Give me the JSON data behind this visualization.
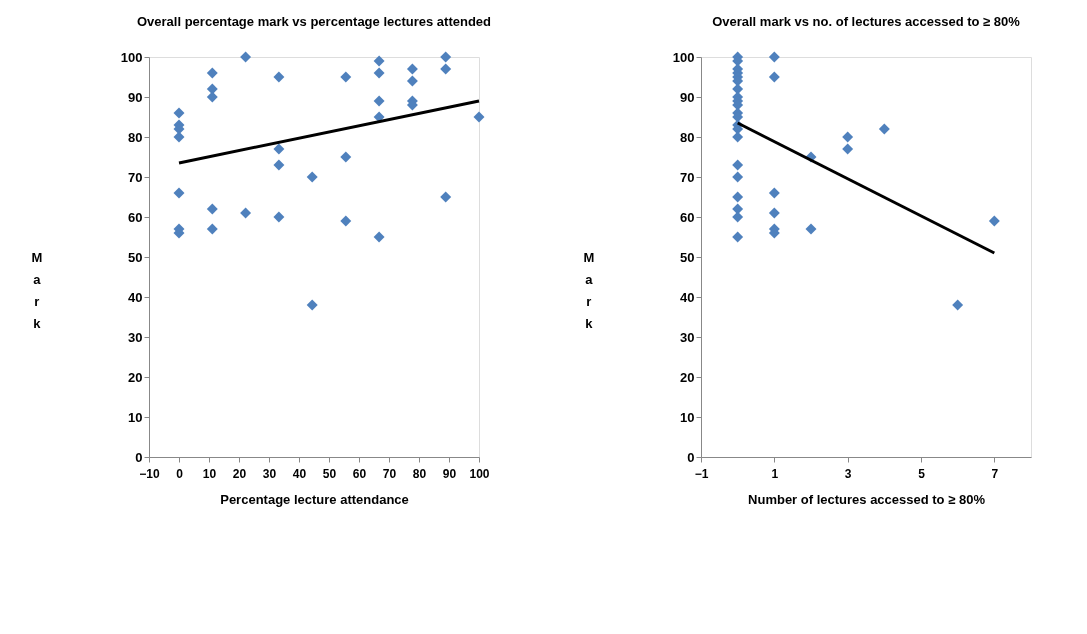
{
  "chart_data": [
    {
      "type": "scatter",
      "title": "Overall percentage mark vs percentage lectures attended",
      "xlabel": "Percentage lecture attendance",
      "ylabel": "Mark",
      "xlim": [
        -10,
        100
      ],
      "xticks": [
        -10,
        0,
        10,
        20,
        30,
        40,
        50,
        60,
        70,
        80,
        90,
        100
      ],
      "ylim": [
        0,
        100
      ],
      "yticks": [
        0,
        10,
        20,
        30,
        40,
        50,
        60,
        70,
        80,
        90,
        100
      ],
      "grid": false,
      "legend": false,
      "series": [
        {
          "type": "scatter",
          "marker": "diamond",
          "color": "#4f81bd",
          "x": [
            0,
            0,
            0,
            0,
            0,
            0,
            0,
            11.1,
            11.1,
            11.1,
            11.1,
            11.1,
            22.2,
            22.2,
            33.3,
            33.3,
            33.3,
            33.3,
            44.4,
            44.4,
            55.6,
            55.6,
            55.6,
            66.7,
            66.7,
            66.7,
            66.7,
            66.7,
            77.8,
            77.8,
            77.8,
            77.8,
            88.9,
            88.9,
            88.9,
            100
          ],
          "values": [
            86,
            83,
            82,
            80,
            66,
            57,
            56,
            96,
            92,
            90,
            62,
            57,
            100,
            61,
            95,
            77,
            73,
            60,
            70,
            38,
            95,
            75,
            59,
            99,
            96,
            89,
            85,
            55,
            97,
            94,
            89,
            88,
            100,
            97,
            65,
            85
          ]
        },
        {
          "type": "line",
          "marker": "none",
          "color": "#000000",
          "x": [
            0,
            100
          ],
          "values": [
            73.5,
            89
          ]
        }
      ]
    },
    {
      "type": "scatter",
      "title": "Overall mark vs no. of lectures accessed to ≥ 80%",
      "xlabel": "Number of lectures accessed to ≥ 80%",
      "ylabel": "Mark",
      "xlim": [
        -1,
        8
      ],
      "xticks": [
        -1,
        1,
        3,
        5,
        7
      ],
      "ylim": [
        0,
        100
      ],
      "yticks": [
        0,
        10,
        20,
        30,
        40,
        50,
        60,
        70,
        80,
        90,
        100
      ],
      "grid": false,
      "legend": false,
      "series": [
        {
          "type": "scatter",
          "marker": "diamond",
          "color": "#4f81bd",
          "x": [
            0,
            0,
            0,
            0,
            0,
            0,
            0,
            0,
            0,
            0,
            0,
            0,
            0,
            0,
            0,
            0,
            0,
            0,
            0,
            0,
            0,
            1,
            1,
            1,
            1,
            1,
            1,
            2,
            2,
            3,
            3,
            4,
            6,
            7
          ],
          "values": [
            100,
            99,
            97,
            96,
            95,
            94,
            92,
            90,
            89,
            88,
            86,
            85,
            83,
            82,
            80,
            73,
            70,
            65,
            62,
            60,
            55,
            100,
            95,
            66,
            61,
            57,
            56,
            75,
            57,
            80,
            77,
            82,
            38,
            59
          ]
        },
        {
          "type": "line",
          "marker": "none",
          "color": "#000000",
          "x": [
            0,
            7
          ],
          "values": [
            83.5,
            51
          ]
        }
      ]
    }
  ]
}
